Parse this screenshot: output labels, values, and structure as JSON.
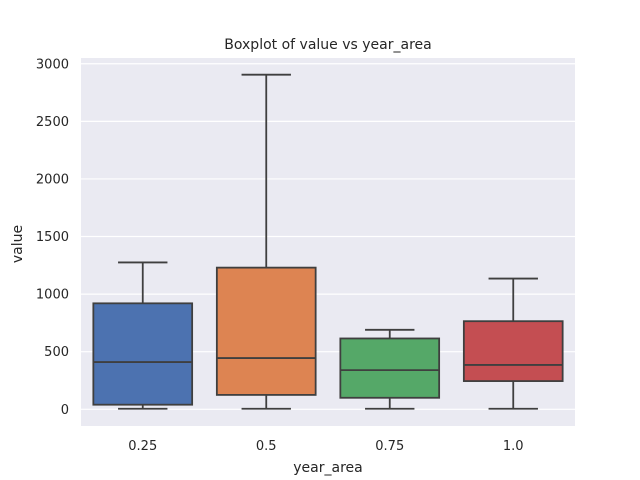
{
  "chart_data": {
    "type": "boxplot",
    "title": "Boxplot of value vs year_area",
    "xlabel": "year_area",
    "ylabel": "value",
    "categories": [
      "0.25",
      "0.5",
      "0.75",
      "1.0"
    ],
    "boxes": [
      {
        "whisker_low": 5,
        "q1": 40,
        "median": 410,
        "q3": 920,
        "whisker_high": 1275,
        "color": "#4c72b0"
      },
      {
        "whisker_low": 5,
        "q1": 125,
        "median": 445,
        "q3": 1230,
        "whisker_high": 2905,
        "color": "#dd8452"
      },
      {
        "whisker_low": 5,
        "q1": 100,
        "median": 340,
        "q3": 615,
        "whisker_high": 690,
        "color": "#55a868"
      },
      {
        "whisker_low": 5,
        "q1": 245,
        "median": 385,
        "q3": 765,
        "whisker_high": 1135,
        "color": "#c44e52"
      }
    ],
    "y_ticks": [
      0,
      500,
      1000,
      1500,
      2000,
      2500,
      3000
    ],
    "ylim": [
      -145,
      3050
    ],
    "grid": true,
    "style": {
      "plot_background": "#eaeaf2",
      "grid_color": "#ffffff",
      "line_color": "#3f3f3f",
      "text_color": "#262626"
    }
  }
}
